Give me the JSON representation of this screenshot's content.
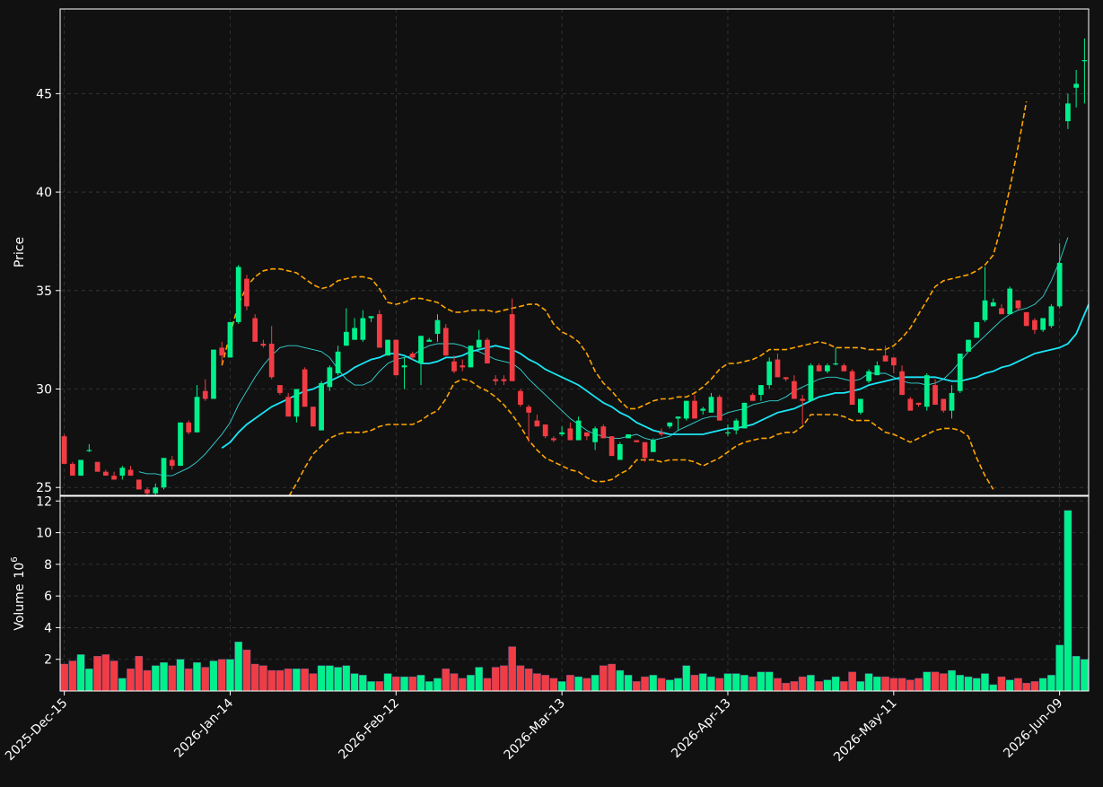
{
  "colors": {
    "background": "#111111",
    "grid": "#3a3a3a",
    "axis": "#ffffff",
    "text": "#ffffff",
    "up": "#00f08c",
    "down": "#f23c44",
    "ma_short": "#35d4d4",
    "ma_long": "#19e6f5",
    "band": "#ffa500"
  },
  "chart_data": [
    {
      "type": "candlestick",
      "panel": "price",
      "ylabel": "Price",
      "ylim": [
        24.6,
        49.3
      ],
      "yticks": [
        25,
        30,
        35,
        40,
        45
      ],
      "grid": true,
      "x_tick_labels": [
        "2025-Dec-15",
        "2026-Jan-14",
        "2026-Feb-12",
        "2026-Mar-13",
        "2026-Apr-13",
        "2026-May-11",
        "2026-Jun-09"
      ],
      "x_tick_positions": [
        0,
        20,
        40,
        60,
        80,
        100,
        120
      ],
      "ohlc": [
        [
          27.6,
          27.7,
          26.2,
          26.2
        ],
        [
          26.2,
          26.3,
          25.6,
          25.6
        ],
        [
          25.6,
          26.4,
          25.6,
          26.4
        ],
        [
          26.9,
          27.2,
          26.8,
          26.9
        ],
        [
          26.3,
          26.3,
          25.8,
          25.8
        ],
        [
          25.8,
          25.9,
          25.6,
          25.6
        ],
        [
          25.6,
          25.8,
          25.4,
          25.4
        ],
        [
          25.6,
          26.1,
          25.4,
          26.0
        ],
        [
          25.9,
          26.1,
          25.6,
          25.6
        ],
        [
          25.4,
          25.4,
          24.9,
          24.9
        ],
        [
          24.9,
          25.0,
          24.6,
          24.7
        ],
        [
          24.7,
          25.2,
          24.6,
          25.0
        ],
        [
          25.0,
          26.5,
          24.9,
          26.5
        ],
        [
          26.4,
          26.6,
          25.9,
          26.1
        ],
        [
          26.1,
          28.3,
          26.1,
          28.3
        ],
        [
          28.3,
          28.4,
          27.7,
          27.8
        ],
        [
          27.8,
          30.2,
          27.8,
          29.6
        ],
        [
          29.9,
          30.5,
          29.4,
          29.5
        ],
        [
          29.5,
          32.0,
          29.5,
          32.0
        ],
        [
          32.1,
          32.4,
          31.3,
          31.7
        ],
        [
          31.6,
          33.4,
          31.6,
          33.4
        ],
        [
          33.4,
          36.3,
          33.3,
          36.2
        ],
        [
          35.6,
          35.8,
          34.0,
          34.2
        ],
        [
          33.6,
          33.8,
          32.4,
          32.4
        ],
        [
          32.3,
          32.5,
          32.1,
          32.2
        ],
        [
          32.3,
          33.2,
          30.5,
          30.6
        ],
        [
          30.2,
          30.2,
          29.7,
          29.8
        ],
        [
          29.6,
          29.8,
          28.6,
          28.6
        ],
        [
          28.6,
          30.0,
          28.3,
          30.0
        ],
        [
          31.0,
          31.1,
          29.1,
          29.1
        ],
        [
          29.1,
          29.1,
          28.1,
          28.1
        ],
        [
          27.9,
          30.4,
          27.9,
          30.3
        ],
        [
          30.1,
          31.2,
          29.9,
          31.1
        ],
        [
          30.8,
          32.2,
          30.7,
          31.9
        ],
        [
          32.2,
          34.1,
          32.2,
          32.9
        ],
        [
          32.5,
          33.6,
          32.5,
          33.1
        ],
        [
          32.5,
          34.0,
          32.4,
          33.6
        ],
        [
          33.6,
          33.7,
          33.4,
          33.7
        ],
        [
          33.8,
          34.0,
          32.1,
          32.1
        ],
        [
          31.7,
          32.5,
          31.7,
          32.5
        ],
        [
          32.5,
          32.5,
          30.7,
          30.7
        ],
        [
          31.1,
          31.6,
          30.0,
          31.2
        ],
        [
          31.8,
          31.9,
          31.5,
          31.6
        ],
        [
          31.3,
          32.7,
          30.2,
          32.7
        ],
        [
          32.4,
          32.6,
          32.4,
          32.5
        ],
        [
          32.8,
          33.8,
          32.4,
          33.5
        ],
        [
          33.1,
          33.3,
          31.7,
          31.7
        ],
        [
          31.4,
          31.7,
          30.8,
          30.9
        ],
        [
          31.2,
          31.5,
          30.9,
          31.1
        ],
        [
          31.1,
          32.2,
          31.1,
          32.2
        ],
        [
          32.1,
          33.0,
          32.0,
          32.5
        ],
        [
          32.5,
          32.6,
          31.3,
          31.3
        ],
        [
          30.5,
          30.7,
          30.2,
          30.4
        ],
        [
          30.5,
          30.7,
          30.2,
          30.4
        ],
        [
          33.8,
          34.6,
          30.4,
          30.4
        ],
        [
          29.9,
          30.0,
          29.1,
          29.2
        ],
        [
          29.1,
          29.2,
          27.3,
          28.8
        ],
        [
          28.4,
          28.7,
          28.1,
          28.1
        ],
        [
          28.2,
          28.2,
          27.5,
          27.6
        ],
        [
          27.5,
          27.6,
          27.3,
          27.4
        ],
        [
          27.7,
          28.1,
          27.6,
          27.8
        ],
        [
          28.0,
          28.3,
          27.4,
          27.4
        ],
        [
          27.4,
          28.6,
          27.4,
          28.4
        ],
        [
          27.8,
          27.8,
          27.4,
          27.6
        ],
        [
          27.3,
          28.1,
          26.9,
          28.0
        ],
        [
          28.1,
          28.2,
          27.5,
          27.5
        ],
        [
          27.6,
          27.6,
          26.6,
          26.6
        ],
        [
          26.4,
          27.3,
          26.4,
          27.2
        ],
        [
          27.5,
          27.7,
          27.5,
          27.7
        ],
        [
          27.4,
          27.4,
          27.3,
          27.3
        ],
        [
          27.3,
          27.3,
          26.3,
          26.5
        ],
        [
          26.8,
          27.5,
          26.8,
          27.4
        ],
        [
          27.8,
          28.0,
          27.6,
          27.7
        ],
        [
          28.1,
          28.3,
          28.0,
          28.3
        ],
        [
          28.5,
          28.6,
          27.9,
          28.6
        ],
        [
          28.5,
          29.4,
          28.4,
          29.4
        ],
        [
          29.4,
          29.7,
          28.5,
          28.5
        ],
        [
          28.9,
          29.1,
          28.7,
          29.0
        ],
        [
          28.8,
          29.8,
          28.8,
          29.6
        ],
        [
          29.6,
          29.7,
          28.4,
          28.4
        ],
        [
          27.8,
          28.2,
          27.6,
          27.8
        ],
        [
          27.9,
          28.5,
          27.7,
          28.4
        ],
        [
          28.0,
          29.3,
          28.0,
          29.3
        ],
        [
          29.7,
          29.8,
          29.4,
          29.4
        ],
        [
          29.7,
          30.2,
          29.4,
          30.2
        ],
        [
          30.2,
          31.6,
          30.0,
          31.4
        ],
        [
          31.5,
          31.8,
          30.6,
          30.6
        ],
        [
          30.6,
          30.6,
          30.4,
          30.5
        ],
        [
          30.4,
          30.7,
          29.5,
          29.5
        ],
        [
          29.5,
          29.7,
          28.2,
          29.4
        ],
        [
          29.4,
          31.3,
          29.4,
          31.2
        ],
        [
          31.2,
          31.3,
          30.9,
          30.9
        ],
        [
          30.9,
          31.3,
          30.8,
          31.2
        ],
        [
          31.3,
          32.1,
          31.2,
          31.3
        ],
        [
          31.2,
          31.3,
          30.9,
          30.9
        ],
        [
          30.9,
          31.0,
          29.2,
          29.2
        ],
        [
          28.8,
          29.5,
          28.7,
          29.5
        ],
        [
          30.4,
          31.0,
          30.3,
          30.9
        ],
        [
          30.7,
          31.4,
          30.7,
          31.2
        ],
        [
          31.7,
          32.2,
          31.4,
          31.4
        ],
        [
          31.6,
          31.6,
          30.8,
          31.2
        ],
        [
          30.9,
          31.2,
          29.7,
          29.7
        ],
        [
          29.5,
          29.6,
          28.9,
          28.9
        ],
        [
          29.3,
          29.3,
          29.1,
          29.2
        ],
        [
          29.1,
          30.8,
          28.9,
          30.7
        ],
        [
          30.2,
          30.5,
          29.2,
          29.2
        ],
        [
          29.5,
          29.5,
          28.8,
          28.9
        ],
        [
          28.9,
          30.2,
          28.5,
          29.8
        ],
        [
          29.9,
          31.8,
          29.8,
          31.8
        ],
        [
          31.9,
          32.5,
          31.9,
          32.5
        ],
        [
          32.6,
          33.4,
          32.6,
          33.4
        ],
        [
          33.5,
          36.2,
          33.4,
          34.5
        ],
        [
          34.2,
          34.6,
          34.2,
          34.4
        ],
        [
          34.1,
          34.3,
          33.8,
          33.8
        ],
        [
          33.8,
          35.2,
          33.8,
          35.1
        ],
        [
          34.5,
          34.5,
          34.0,
          34.1
        ],
        [
          33.9,
          33.9,
          33.2,
          33.2
        ],
        [
          33.5,
          33.6,
          32.8,
          33.0
        ],
        [
          33.0,
          33.6,
          32.9,
          33.6
        ],
        [
          33.2,
          34.3,
          33.1,
          34.2
        ],
        [
          34.2,
          37.4,
          34.1,
          36.4
        ],
        [
          43.6,
          45.0,
          43.2,
          44.5
        ],
        [
          45.3,
          46.2,
          44.3,
          45.5
        ],
        [
          46.7,
          47.8,
          44.5,
          46.7
        ]
      ],
      "ma_short": [
        null,
        null,
        null,
        null,
        null,
        null,
        null,
        null,
        null,
        25.8,
        25.7,
        25.7,
        25.6,
        25.6,
        25.8,
        26.0,
        26.3,
        26.7,
        27.2,
        27.7,
        28.3,
        29.2,
        29.9,
        30.6,
        31.2,
        31.7,
        32.1,
        32.2,
        32.2,
        32.1,
        32.0,
        31.9,
        31.6,
        31.0,
        30.5,
        30.2,
        30.2,
        30.4,
        30.9,
        31.3,
        31.5,
        31.6,
        31.7,
        32.0,
        32.2,
        32.3,
        32.3,
        32.3,
        32.2,
        32.0,
        31.9,
        31.7,
        31.5,
        31.4,
        31.3,
        31.0,
        30.5,
        30.1,
        29.7,
        29.3,
        28.9,
        28.5,
        28.2,
        27.9,
        27.7,
        27.6,
        27.5,
        27.5,
        27.6,
        27.7,
        27.5,
        27.4,
        27.5,
        27.6,
        27.9,
        28.1,
        28.3,
        28.5,
        28.6,
        28.6,
        28.8,
        28.9,
        29.0,
        29.2,
        29.3,
        29.4,
        29.4,
        29.6,
        29.9,
        30.1,
        30.3,
        30.5,
        30.6,
        30.6,
        30.5,
        30.4,
        30.5,
        30.8,
        30.8,
        30.8,
        30.6,
        30.4,
        30.3,
        30.3,
        30.2,
        30.3,
        30.5,
        30.9,
        31.4,
        31.9,
        32.3,
        32.7,
        33.1,
        33.5,
        33.8,
        34.0,
        34.1,
        34.3,
        34.7,
        35.5,
        36.5,
        37.7
      ],
      "ma_long": [
        null,
        null,
        null,
        null,
        null,
        null,
        null,
        null,
        null,
        null,
        null,
        null,
        null,
        null,
        null,
        null,
        null,
        null,
        null,
        27.0,
        27.3,
        27.8,
        28.2,
        28.5,
        28.8,
        29.1,
        29.3,
        29.5,
        29.7,
        29.9,
        30.0,
        30.2,
        30.4,
        30.6,
        30.8,
        31.1,
        31.3,
        31.5,
        31.6,
        31.8,
        31.8,
        31.7,
        31.5,
        31.3,
        31.3,
        31.4,
        31.6,
        31.6,
        31.7,
        31.9,
        32.0,
        32.1,
        32.2,
        32.1,
        32.0,
        31.8,
        31.5,
        31.3,
        31.0,
        30.8,
        30.6,
        30.4,
        30.2,
        29.9,
        29.6,
        29.3,
        29.1,
        28.8,
        28.6,
        28.3,
        28.1,
        27.9,
        27.8,
        27.7,
        27.7,
        27.7,
        27.7,
        27.7,
        27.8,
        27.9,
        28.0,
        28.0,
        28.1,
        28.2,
        28.4,
        28.6,
        28.8,
        28.9,
        29.0,
        29.2,
        29.4,
        29.6,
        29.7,
        29.8,
        29.8,
        29.9,
        30.0,
        30.2,
        30.3,
        30.4,
        30.5,
        30.6,
        30.6,
        30.6,
        30.6,
        30.6,
        30.5,
        30.4,
        30.4,
        30.5,
        30.6,
        30.8,
        30.9,
        31.1,
        31.2,
        31.4,
        31.6,
        31.8,
        31.9,
        32.0,
        32.1,
        32.3,
        32.8,
        33.8,
        34.8
      ],
      "band_upper": [
        null,
        null,
        null,
        null,
        null,
        null,
        null,
        null,
        null,
        null,
        null,
        null,
        null,
        null,
        null,
        null,
        null,
        null,
        null,
        31.2,
        32.8,
        34.3,
        35.2,
        35.7,
        36.0,
        36.1,
        36.1,
        36.0,
        35.9,
        35.6,
        35.3,
        35.1,
        35.2,
        35.5,
        35.6,
        35.7,
        35.7,
        35.6,
        35.1,
        34.4,
        34.3,
        34.4,
        34.6,
        34.6,
        34.5,
        34.4,
        34.1,
        33.9,
        33.9,
        34.0,
        34.0,
        34.0,
        33.9,
        34.0,
        34.1,
        34.2,
        34.3,
        34.3,
        34.0,
        33.3,
        32.9,
        32.7,
        32.4,
        31.8,
        30.9,
        30.3,
        29.9,
        29.4,
        29.0,
        29.0,
        29.2,
        29.4,
        29.5,
        29.5,
        29.6,
        29.6,
        29.8,
        30.1,
        30.5,
        31.0,
        31.3,
        31.3,
        31.4,
        31.5,
        31.7,
        32.0,
        32.0,
        32.0,
        32.1,
        32.2,
        32.3,
        32.4,
        32.3,
        32.1,
        32.1,
        32.1,
        32.1,
        32.0,
        32.0,
        32.0,
        32.2,
        32.6,
        33.1,
        33.8,
        34.5,
        35.2,
        35.5,
        35.6,
        35.7,
        35.8,
        36.0,
        36.3,
        36.8,
        38.3,
        40.2,
        42.3,
        44.6
      ],
      "band_lower": [
        null,
        null,
        null,
        null,
        null,
        null,
        null,
        null,
        null,
        null,
        null,
        null,
        null,
        null,
        null,
        null,
        null,
        null,
        null,
        22.8,
        22.6,
        22.3,
        22.0,
        22.2,
        22.6,
        23.1,
        23.8,
        24.5,
        25.2,
        26.0,
        26.7,
        27.1,
        27.5,
        27.7,
        27.8,
        27.8,
        27.8,
        27.9,
        28.1,
        28.2,
        28.2,
        28.2,
        28.2,
        28.4,
        28.7,
        28.9,
        29.5,
        30.3,
        30.5,
        30.4,
        30.1,
        29.9,
        29.6,
        29.2,
        28.7,
        28.1,
        27.4,
        26.9,
        26.5,
        26.3,
        26.1,
        25.9,
        25.8,
        25.5,
        25.3,
        25.3,
        25.4,
        25.7,
        25.9,
        26.4,
        26.4,
        26.4,
        26.3,
        26.4,
        26.4,
        26.4,
        26.3,
        26.1,
        26.3,
        26.5,
        26.8,
        27.1,
        27.3,
        27.4,
        27.5,
        27.5,
        27.7,
        27.8,
        27.8,
        28.1,
        28.7,
        28.7,
        28.7,
        28.7,
        28.6,
        28.4,
        28.4,
        28.4,
        28.1,
        27.8,
        27.7,
        27.5,
        27.3,
        27.5,
        27.7,
        27.9,
        28.0,
        28.0,
        27.9,
        27.6,
        26.5,
        25.6,
        24.9
      ]
    },
    {
      "type": "bar",
      "panel": "volume",
      "ylabel": "Volume",
      "ylabel_exponent": "6",
      "ylim": [
        0,
        12.3
      ],
      "yticks": [
        2,
        4,
        6,
        8,
        10,
        12
      ],
      "grid": true,
      "values": [
        1.7,
        1.9,
        2.3,
        1.4,
        2.2,
        2.3,
        1.9,
        0.8,
        1.4,
        2.2,
        1.3,
        1.6,
        1.8,
        1.6,
        2.0,
        1.4,
        1.8,
        1.5,
        1.9,
        2.0,
        2.0,
        3.1,
        2.6,
        1.7,
        1.6,
        1.3,
        1.3,
        1.4,
        1.4,
        1.4,
        1.1,
        1.6,
        1.6,
        1.5,
        1.6,
        1.1,
        1.0,
        0.6,
        0.6,
        1.1,
        0.9,
        0.9,
        0.9,
        1.0,
        0.6,
        0.8,
        1.4,
        1.1,
        0.8,
        1.0,
        1.5,
        0.8,
        1.5,
        1.6,
        2.8,
        1.6,
        1.4,
        1.1,
        1.0,
        0.8,
        0.6,
        1.0,
        0.9,
        0.8,
        1.0,
        1.6,
        1.7,
        1.3,
        1.0,
        0.6,
        0.9,
        1.0,
        0.8,
        0.7,
        0.8,
        1.6,
        1.0,
        1.1,
        0.9,
        0.8,
        1.1,
        1.1,
        1.0,
        0.9,
        1.2,
        1.2,
        0.8,
        0.5,
        0.6,
        0.9,
        1.0,
        0.6,
        0.7,
        0.9,
        0.6,
        1.2,
        0.6,
        1.1,
        0.9,
        0.9,
        0.8,
        0.8,
        0.7,
        0.8,
        1.2,
        1.2,
        1.1,
        1.3,
        1.0,
        0.9,
        0.8,
        1.1,
        0.4,
        0.9,
        0.7,
        0.8,
        0.5,
        0.6,
        0.8,
        1.0,
        2.9,
        11.4,
        2.2,
        2.0
      ]
    }
  ]
}
